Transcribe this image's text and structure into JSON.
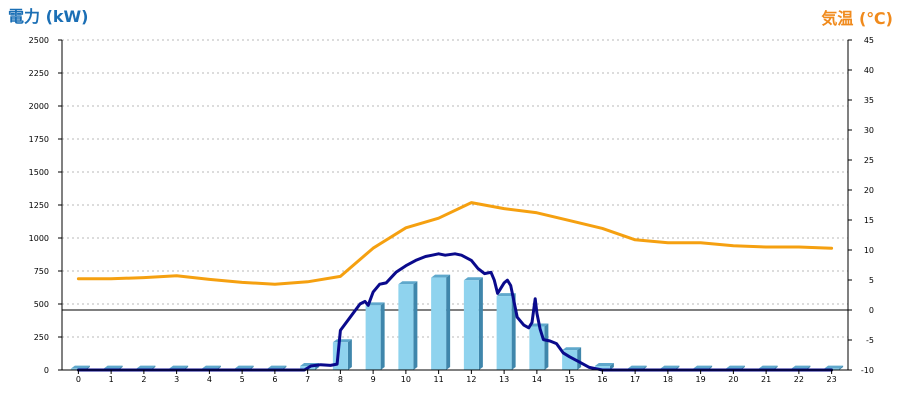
{
  "chart_data": {
    "type": "bar",
    "left_axis_title": "電力 (kW)",
    "right_axis_title": "気温 (℃)",
    "left_axis_color": "#1b6fb5",
    "right_axis_color": "#f08a1c",
    "left_ylim": [
      0,
      2500
    ],
    "left_ticks": [
      0,
      250,
      500,
      750,
      1000,
      1250,
      1500,
      1750,
      2000,
      2250,
      2500
    ],
    "right_ylim": [
      -10,
      45
    ],
    "right_ticks": [
      -10,
      -5,
      0,
      5,
      10,
      15,
      20,
      25,
      30,
      35,
      40,
      45
    ],
    "grid": true,
    "categories": [
      "0",
      "1",
      "2",
      "3",
      "4",
      "5",
      "6",
      "7",
      "8",
      "9",
      "10",
      "11",
      "12",
      "13",
      "14",
      "15",
      "16",
      "17",
      "18",
      "19",
      "20",
      "21",
      "22",
      "23"
    ],
    "bar_series": {
      "axis": "left",
      "color": "#8fd3ee",
      "values": [
        10,
        10,
        10,
        10,
        10,
        10,
        10,
        30,
        210,
        490,
        650,
        700,
        680,
        560,
        330,
        150,
        30,
        10,
        10,
        10,
        10,
        10,
        10,
        10
      ]
    },
    "line_series": [
      {
        "axis": "left",
        "color": "#0a0a8c",
        "x": [
          0,
          1,
          2,
          3,
          4,
          5,
          6,
          6.9,
          7.1,
          7.4,
          7.7,
          7.9,
          8.0,
          8.3,
          8.6,
          8.75,
          8.85,
          9.0,
          9.2,
          9.4,
          9.7,
          10.0,
          10.3,
          10.6,
          10.8,
          11.0,
          11.2,
          11.5,
          11.7,
          12.0,
          12.2,
          12.4,
          12.6,
          12.7,
          12.8,
          13.0,
          13.1,
          13.2,
          13.4,
          13.6,
          13.75,
          13.85,
          13.95,
          14.0,
          14.1,
          14.2,
          14.4,
          14.6,
          14.8,
          15.0,
          15.3,
          15.6,
          15.8,
          16.0,
          17,
          18,
          19,
          20,
          21,
          22,
          23
        ],
        "values": [
          0,
          0,
          0,
          0,
          0,
          0,
          0,
          0,
          30,
          40,
          35,
          45,
          300,
          400,
          500,
          520,
          490,
          590,
          650,
          660,
          740,
          790,
          830,
          860,
          870,
          880,
          870,
          880,
          870,
          830,
          770,
          730,
          740,
          680,
          580,
          660,
          680,
          640,
          400,
          340,
          320,
          360,
          540,
          430,
          310,
          230,
          220,
          200,
          130,
          100,
          60,
          20,
          10,
          0,
          0,
          0,
          0,
          0,
          0,
          0,
          0
        ]
      },
      {
        "axis": "right",
        "color": "#f5a010",
        "x": [
          0,
          1,
          2,
          3,
          4,
          5,
          6,
          7,
          8,
          9,
          10,
          11,
          12,
          13,
          14,
          15,
          16,
          17,
          18,
          19,
          20,
          21,
          22,
          23
        ],
        "values": [
          5.2,
          5.2,
          5.4,
          5.7,
          5.1,
          4.6,
          4.3,
          4.7,
          5.6,
          10.3,
          13.7,
          15.3,
          17.9,
          16.9,
          16.2,
          14.9,
          13.6,
          11.7,
          11.2,
          11.2,
          10.7,
          10.5,
          10.5,
          10.3
        ]
      }
    ]
  }
}
